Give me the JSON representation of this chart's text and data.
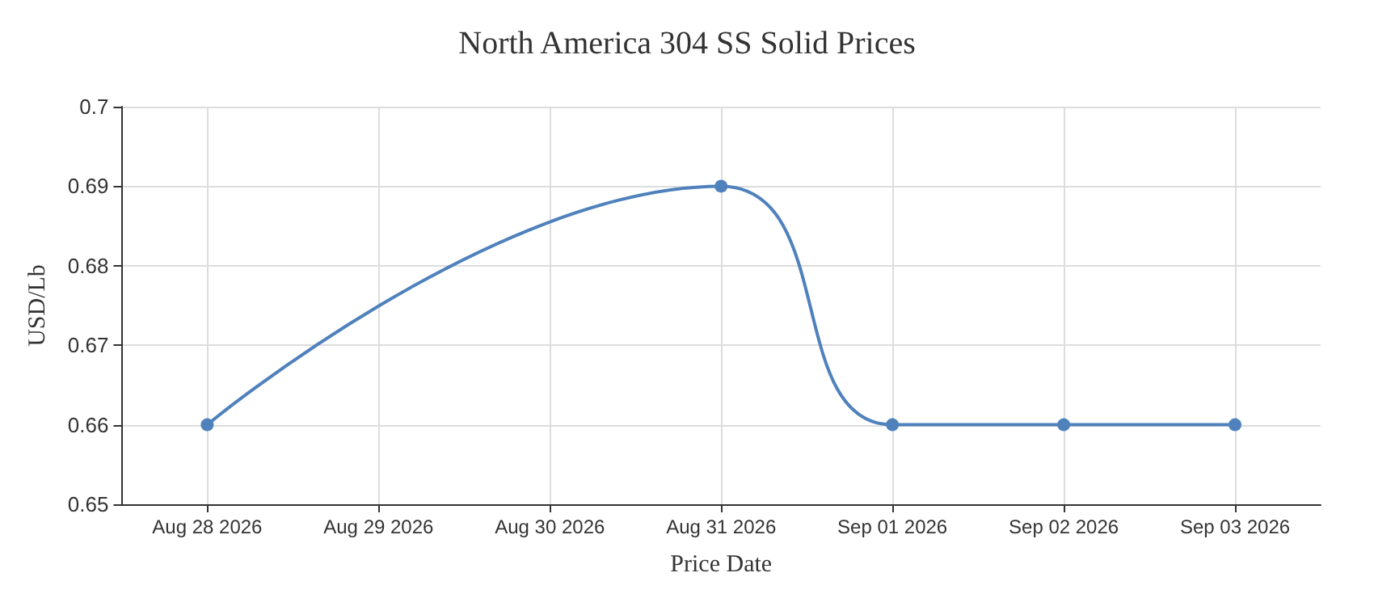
{
  "chart_data": {
    "type": "line",
    "title": "North America 304 SS Solid Prices",
    "xlabel": "Price Date",
    "ylabel": "USD/Lb",
    "x": [
      "2026-08-28",
      "2026-08-31",
      "2026-09-01",
      "2026-09-02",
      "2026-09-03"
    ],
    "series": [
      {
        "color": "#4f81bc",
        "values": [
          0.66,
          0.69,
          0.66,
          0.66,
          0.66
        ]
      }
    ],
    "xlim": [
      "2026-08-27T12:00",
      "2026-09-03T12:00"
    ],
    "xticks": [
      {
        "value": "2026-08-28",
        "label": "Aug 28 2026"
      },
      {
        "value": "2026-08-29",
        "label": "Aug 29 2026"
      },
      {
        "value": "2026-08-30",
        "label": "Aug 30 2026"
      },
      {
        "value": "2026-08-31",
        "label": "Aug 31 2026"
      },
      {
        "value": "2026-09-01",
        "label": "Sep 01 2026"
      },
      {
        "value": "2026-09-02",
        "label": "Sep 02 2026"
      },
      {
        "value": "2026-09-03",
        "label": "Sep 03 2026"
      }
    ],
    "ylim": [
      0.65,
      0.7
    ],
    "yticks": [
      0.65,
      0.66,
      0.67,
      0.68,
      0.69,
      0.7
    ],
    "grid": true,
    "marker": "circle",
    "line_style": "solid"
  }
}
